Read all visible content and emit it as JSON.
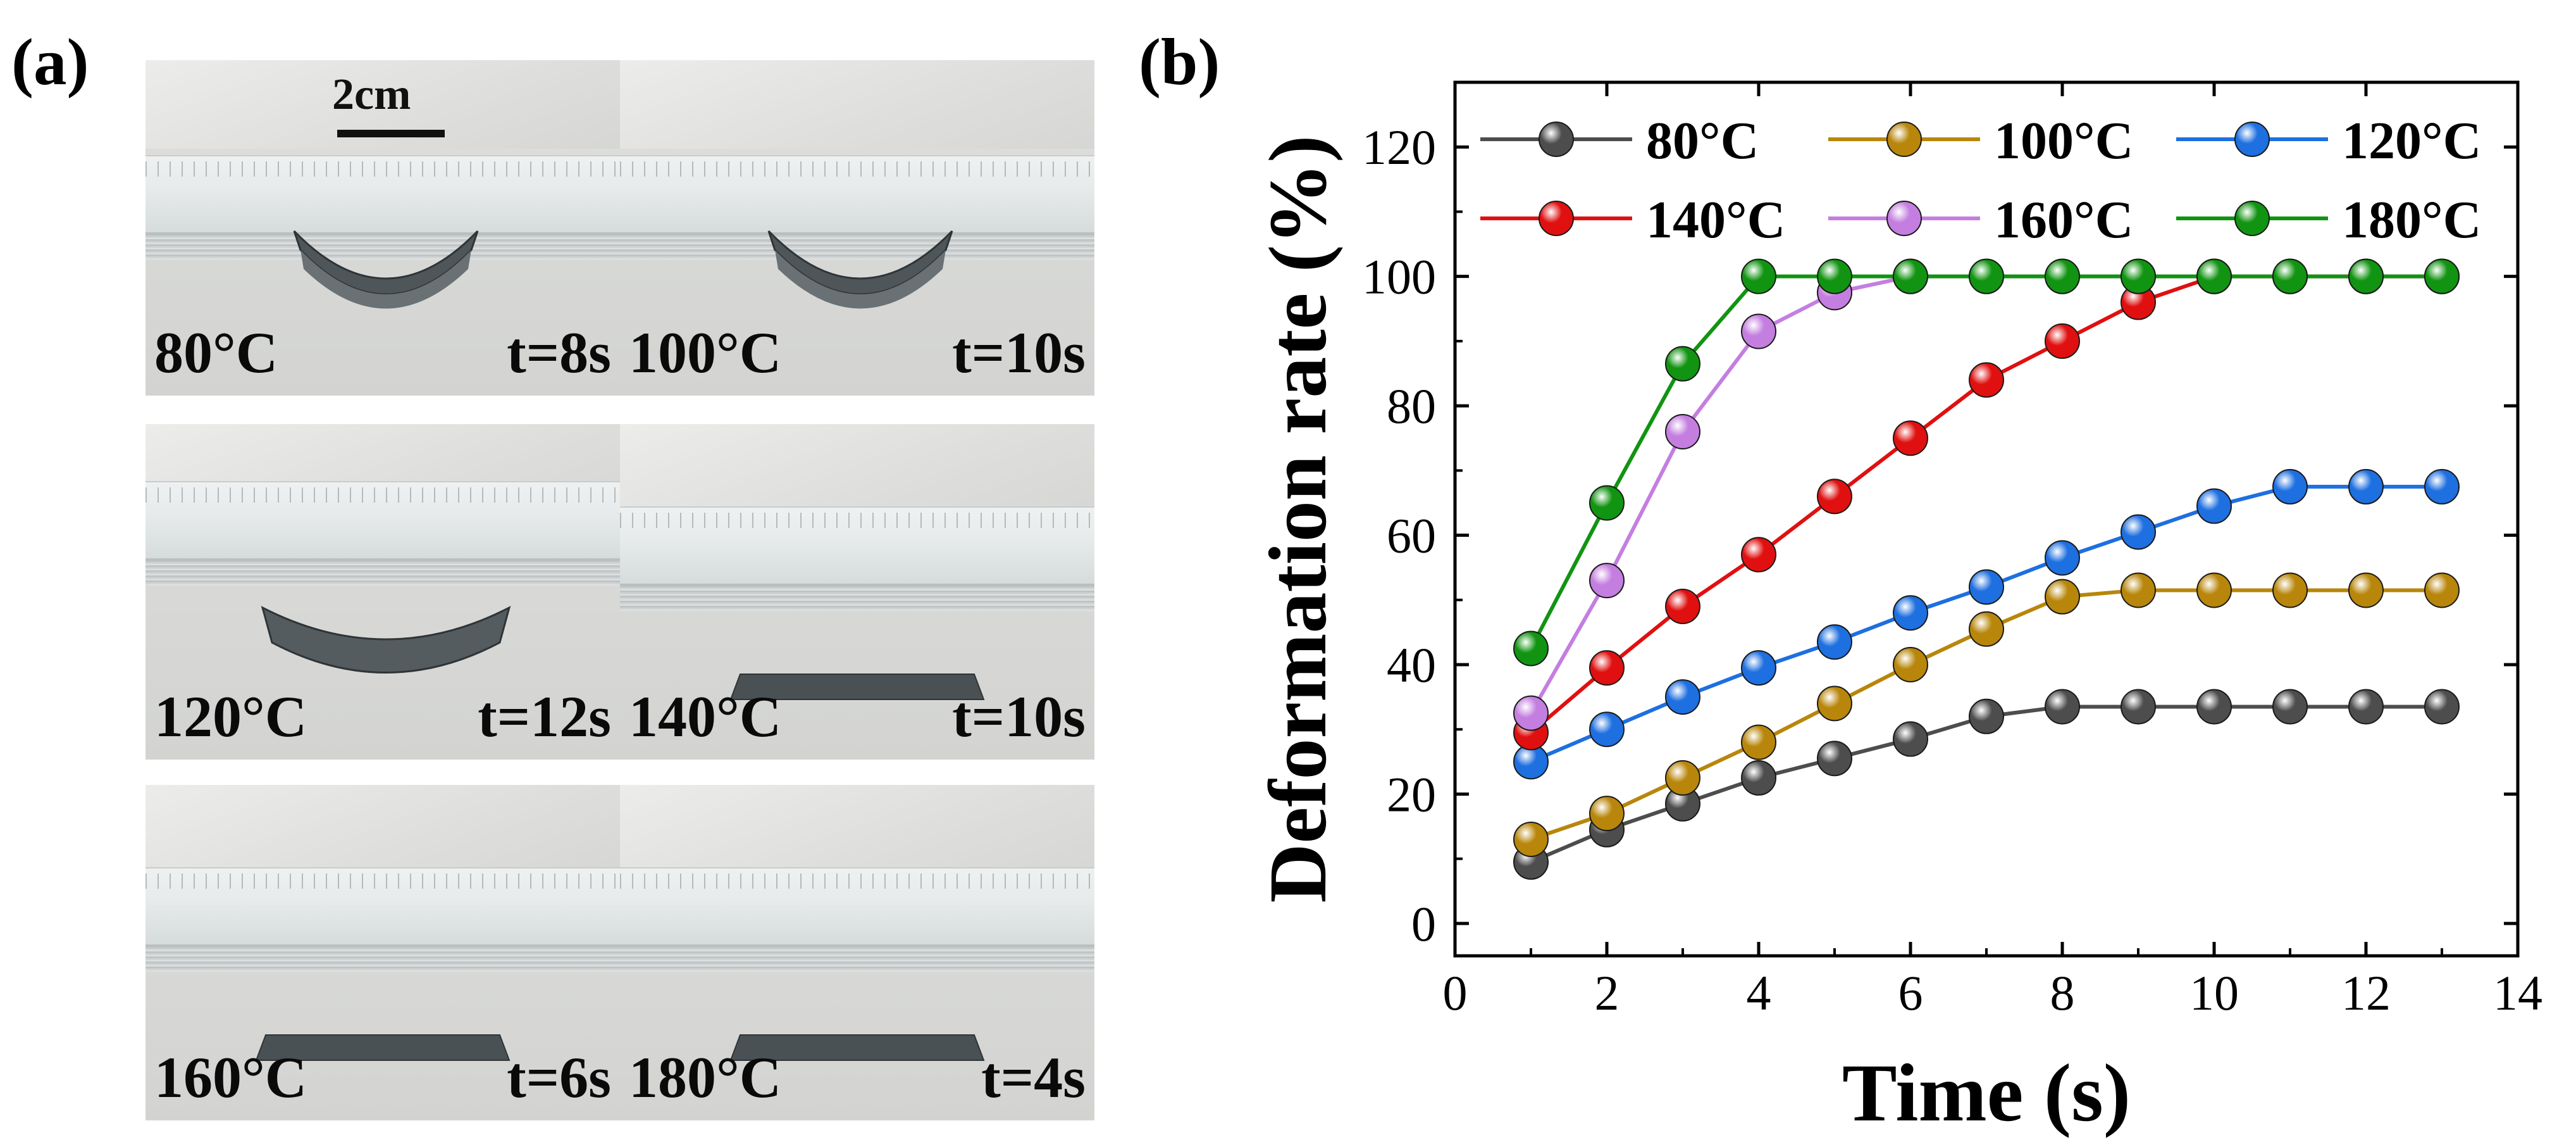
{
  "panel_labels": {
    "a": "(a)",
    "b": "(b)"
  },
  "scale_bar_label": "2cm",
  "photos": [
    {
      "temp": "80°C",
      "time": "t=8s",
      "shape": "curved-deep"
    },
    {
      "temp": "100°C",
      "time": "t=10s",
      "shape": "curved-deep"
    },
    {
      "temp": "120°C",
      "time": "t=12s",
      "shape": "curved-shallow"
    },
    {
      "temp": "140°C",
      "time": "t=10s",
      "shape": "flat"
    },
    {
      "temp": "160°C",
      "time": "t=6s",
      "shape": "flat"
    },
    {
      "temp": "180°C",
      "time": "t=4s",
      "shape": "flat"
    }
  ],
  "chart_data": {
    "type": "line",
    "xlabel": "Time (s)",
    "ylabel": "Deformation rate (%)",
    "xlim": [
      0,
      14
    ],
    "ylim": [
      -5,
      130
    ],
    "xticks": [
      0,
      2,
      4,
      6,
      8,
      10,
      12,
      14
    ],
    "yticks": [
      0,
      20,
      40,
      60,
      80,
      100,
      120
    ],
    "grid": false,
    "legend_position": "top",
    "x": [
      1,
      2,
      3,
      4,
      5,
      6,
      7,
      8,
      9,
      10,
      11,
      12,
      13
    ],
    "series": [
      {
        "name": "80°C",
        "color": "#4d4d4d",
        "values": [
          9.5,
          14.5,
          18.5,
          22.5,
          25.5,
          28.5,
          32,
          33.5,
          33.5,
          33.5,
          33.5,
          33.5,
          33.5
        ]
      },
      {
        "name": "100°C",
        "color": "#b8860b",
        "values": [
          13,
          17,
          22.5,
          28,
          34,
          40,
          45.5,
          50.5,
          51.5,
          51.5,
          51.5,
          51.5,
          51.5
        ]
      },
      {
        "name": "120°C",
        "color": "#1e6fe0",
        "values": [
          25,
          30,
          35,
          39.5,
          43.5,
          48,
          52,
          56.5,
          60.5,
          64.5,
          67.5,
          67.5,
          67.5
        ]
      },
      {
        "name": "140°C",
        "color": "#e01010",
        "values": [
          29.5,
          39.5,
          49,
          57,
          66,
          75,
          84,
          90,
          96,
          100,
          100,
          100,
          100
        ]
      },
      {
        "name": "160°C",
        "color": "#c47ee0",
        "values": [
          32.5,
          53,
          76,
          91.5,
          97.5,
          100,
          100,
          100,
          100,
          100,
          100,
          100,
          100
        ]
      },
      {
        "name": "180°C",
        "color": "#119411",
        "values": [
          42.5,
          65,
          86.5,
          100,
          100,
          100,
          100,
          100,
          100,
          100,
          100,
          100,
          100
        ]
      }
    ]
  }
}
